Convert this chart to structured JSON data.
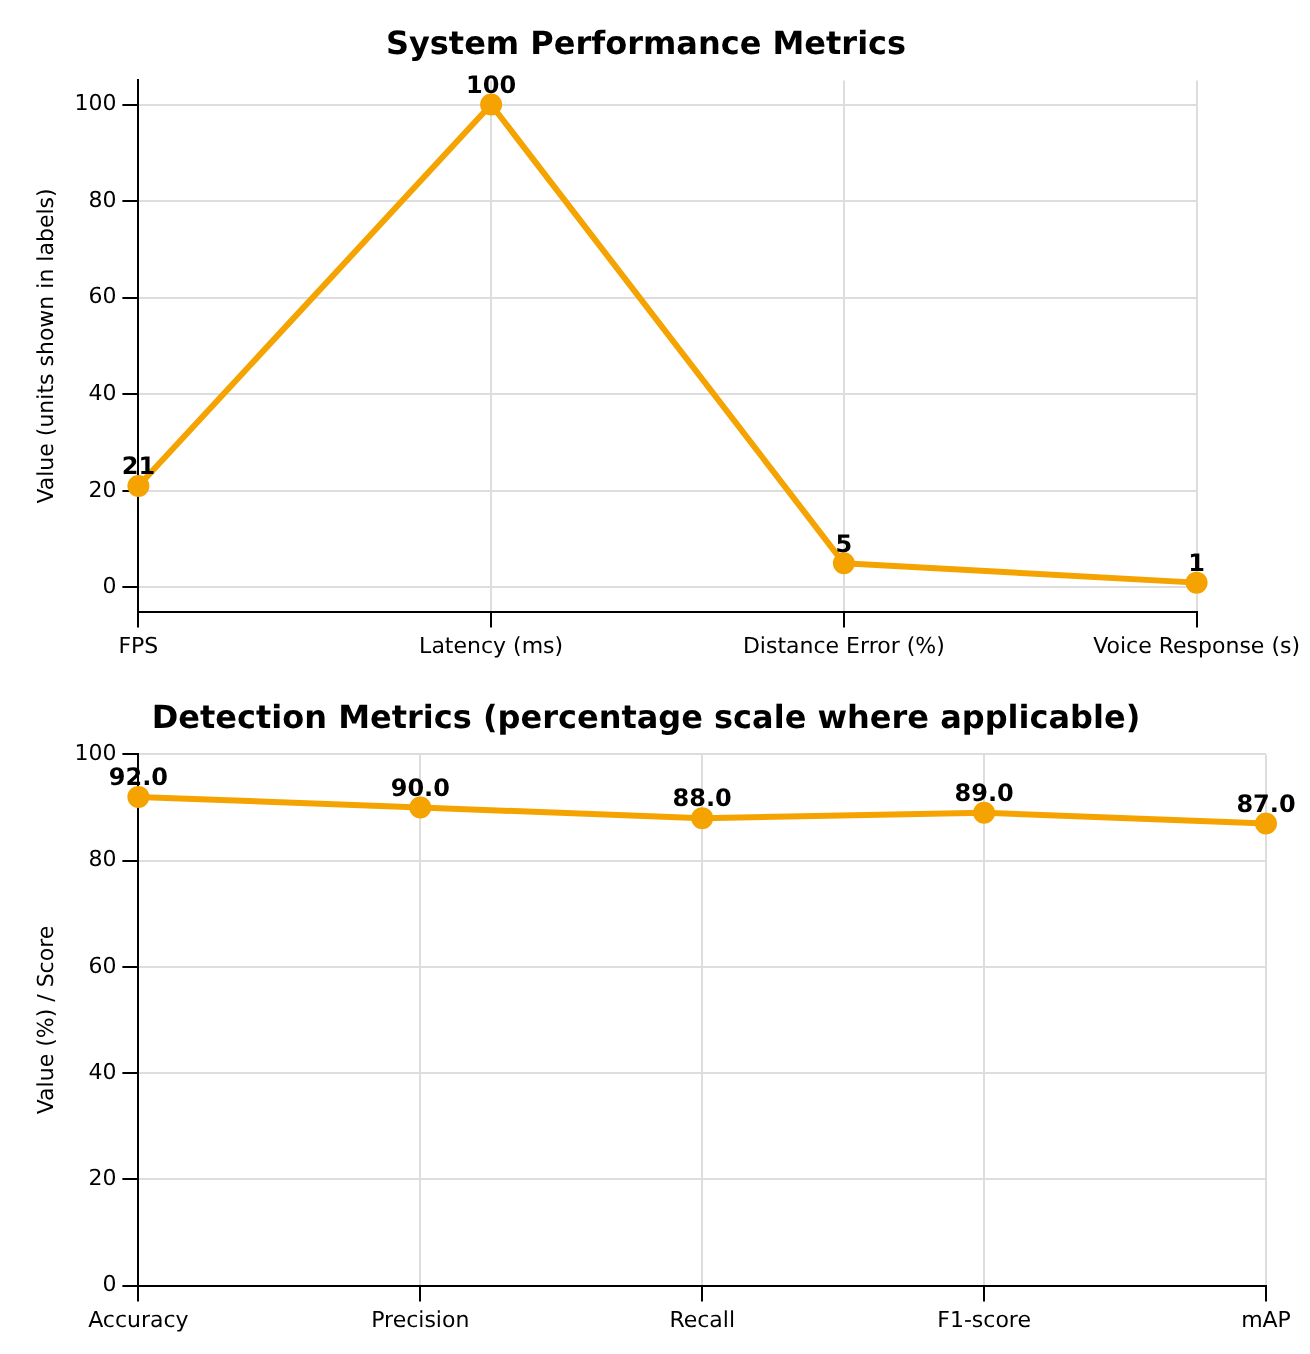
{
  "chart_data": [
    {
      "type": "line",
      "title": "System Performance Metrics",
      "ylabel": "Value (units shown in labels)",
      "categories": [
        "FPS",
        "Latency (ms)",
        "Distance Error (%)",
        "Voice Response (s)"
      ],
      "series": [
        {
          "color": "#f5a300",
          "values": [
            21,
            100,
            5,
            1
          ]
        }
      ],
      "ylim": [
        -5,
        105
      ],
      "yticks": [
        0,
        20,
        40,
        60,
        80,
        100
      ],
      "grid": true,
      "marker": "circle",
      "line_style": "solid",
      "data_labels": true
    },
    {
      "type": "line",
      "title": "Detection Metrics (percentage scale where applicable)",
      "ylabel": "Value (%) / Score",
      "categories": [
        "Accuracy",
        "Precision",
        "Recall",
        "F1-score",
        "mAP"
      ],
      "series": [
        {
          "color": "#f5a300",
          "values": [
            92,
            90,
            88,
            89,
            87
          ],
          "value_labels": [
            "92.0",
            "90.0",
            "88.0",
            "89.0",
            "87.0"
          ]
        }
      ],
      "ylim": [
        0,
        100
      ],
      "yticks": [
        0,
        20,
        40,
        60,
        80,
        100
      ],
      "grid": true,
      "marker": "circle",
      "line_style": "solid"
    }
  ]
}
